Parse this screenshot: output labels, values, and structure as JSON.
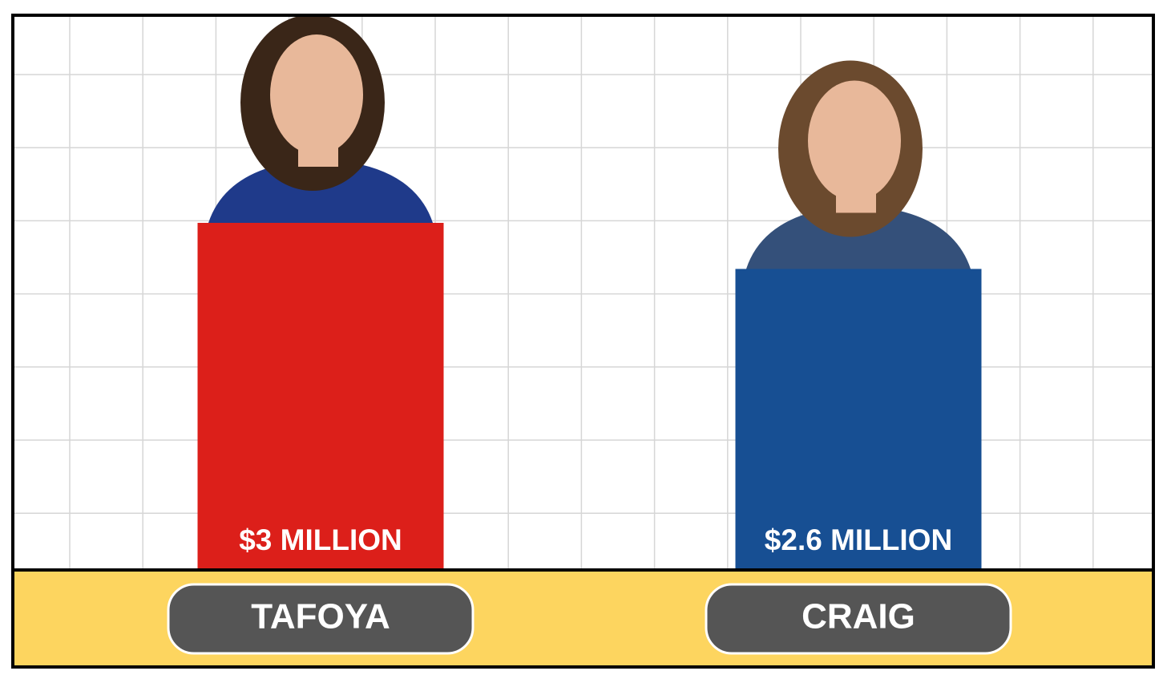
{
  "chart_data": {
    "type": "bar",
    "categories": [
      "TAFOYA",
      "CRAIG"
    ],
    "values": [
      3,
      2.6
    ],
    "value_labels": [
      "$3 MILLION",
      "$2.6 MILLION"
    ],
    "colors": [
      "#dc1f1a",
      "#174f93"
    ],
    "grid": true
  }
}
